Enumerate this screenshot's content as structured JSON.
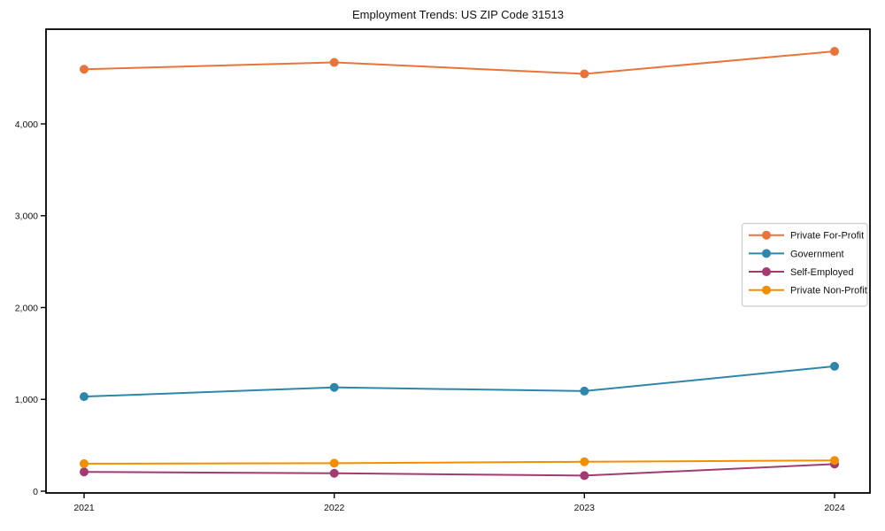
{
  "chart_data": {
    "type": "line",
    "title": "Employment Trends: US ZIP Code 31513",
    "xlabel": "",
    "ylabel": "",
    "categories": [
      "2021",
      "2022",
      "2023",
      "2024"
    ],
    "series": [
      {
        "name": "Private For-Profit",
        "color": "#E8743B",
        "values": [
          4595,
          4670,
          4545,
          4790
        ]
      },
      {
        "name": "Government",
        "color": "#2E86AB",
        "values": [
          1030,
          1130,
          1090,
          1360
        ]
      },
      {
        "name": "Self-Employed",
        "color": "#A23B72",
        "values": [
          210,
          195,
          170,
          295
        ]
      },
      {
        "name": "Private Non-Profit",
        "color": "#F18F01",
        "values": [
          300,
          305,
          320,
          335
        ]
      }
    ],
    "ylim": [
      0,
      5030
    ],
    "yticks": [
      0,
      1000,
      2000,
      3000,
      4000
    ],
    "ytick_labels": [
      "0",
      "1,000",
      "2,000",
      "3,000",
      "4,000"
    ],
    "grid": false,
    "marker": "circle",
    "legend_position": "center right"
  }
}
